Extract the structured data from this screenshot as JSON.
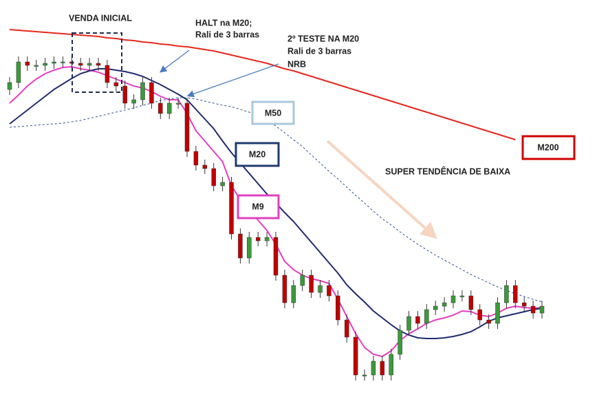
{
  "chart_data": {
    "type": "candlestick",
    "up_color": "#3b9a3b",
    "down_color": "#c00000",
    "wick_color": "#333333",
    "candles": {
      "open": [
        447,
        457,
        487,
        482,
        482,
        485,
        487,
        487,
        485,
        482,
        485,
        482,
        457,
        452,
        427,
        432,
        457,
        427,
        412,
        427,
        427,
        357,
        337,
        332,
        307,
        312,
        237,
        202,
        232,
        227,
        232,
        177,
        137,
        162,
        177,
        152,
        162,
        147,
        112,
        87,
        32,
        32,
        52,
        32,
        62,
        97,
        117,
        107,
        127,
        132,
        137,
        147,
        147,
        127,
        112,
        107,
        137,
        162,
        137,
        132,
        122
      ],
      "high": [
        465,
        495,
        495,
        490,
        493,
        495,
        495,
        495,
        493,
        493,
        493,
        490,
        465,
        460,
        440,
        465,
        465,
        435,
        435,
        435,
        435,
        365,
        345,
        340,
        320,
        320,
        245,
        240,
        240,
        240,
        240,
        185,
        170,
        185,
        185,
        170,
        170,
        155,
        120,
        95,
        40,
        60,
        60,
        70,
        105,
        125,
        125,
        135,
        140,
        145,
        155,
        155,
        155,
        135,
        120,
        145,
        170,
        170,
        145,
        140,
        140
      ],
      "low": [
        439,
        449,
        474,
        474,
        474,
        477,
        479,
        477,
        474,
        474,
        474,
        449,
        444,
        419,
        419,
        424,
        419,
        404,
        404,
        419,
        349,
        329,
        324,
        299,
        299,
        229,
        194,
        194,
        219,
        219,
        169,
        129,
        129,
        154,
        144,
        144,
        139,
        104,
        79,
        24,
        24,
        24,
        24,
        24,
        54,
        89,
        99,
        99,
        119,
        124,
        129,
        139,
        119,
        104,
        99,
        99,
        129,
        129,
        124,
        114,
        114
      ],
      "close": [
        457,
        487,
        482,
        482,
        485,
        487,
        487,
        485,
        482,
        485,
        482,
        457,
        452,
        427,
        432,
        457,
        427,
        412,
        427,
        427,
        357,
        337,
        332,
        307,
        312,
        237,
        202,
        232,
        227,
        232,
        177,
        137,
        162,
        177,
        152,
        162,
        147,
        112,
        87,
        32,
        32,
        52,
        32,
        62,
        97,
        117,
        107,
        127,
        132,
        137,
        147,
        147,
        127,
        112,
        107,
        137,
        162,
        137,
        132,
        122,
        132
      ]
    },
    "series": [
      {
        "name": "M9",
        "color": "#e63cbf",
        "dashed": false,
        "values": [
          427,
          439,
          452,
          462,
          470,
          475,
          479,
          480,
          477,
          475,
          472,
          467,
          462,
          457,
          452,
          449,
          444,
          437,
          432,
          432,
          412,
          387,
          372,
          357,
          342,
          307,
          287,
          272,
          257,
          242,
          222,
          197,
          185,
          177,
          172,
          169,
          165,
          142,
          117,
          92,
          72,
          62,
          59,
          67,
          82,
          92,
          99,
          107,
          112,
          115,
          119,
          125,
          124,
          119,
          117,
          122,
          129,
          132,
          130,
          129,
          130
        ]
      },
      {
        "name": "M20",
        "color": "#1f2a6e",
        "dashed": false,
        "values": [
          397,
          407,
          417,
          427,
          437,
          447,
          455,
          463,
          470,
          474,
          477,
          477,
          475,
          473,
          470,
          466,
          460,
          454,
          447,
          440,
          432,
          418,
          404,
          390,
          372,
          355,
          340,
          325,
          310,
          295,
          282,
          268,
          255,
          240,
          225,
          210,
          195,
          180,
          163,
          150,
          138,
          125,
          115,
          105,
          96,
          90,
          86,
          85,
          85,
          86,
          88,
          91,
          95,
          102,
          110,
          115,
          118,
          121,
          124,
          127,
          129
        ]
      },
      {
        "name": "M50",
        "color": "#2b4a9a",
        "dashed": true,
        "values": [
          392,
          393,
          394,
          395,
          396,
          397,
          398,
          400,
          402,
          405,
          408,
          411,
          414,
          417,
          420,
          424,
          427,
          431,
          433,
          435,
          435,
          433,
          430,
          427,
          424,
          422,
          418,
          414,
          410,
          402,
          394,
          384,
          374,
          364,
          352,
          340,
          328,
          317,
          305,
          293,
          282,
          270,
          259,
          250,
          240,
          231,
          222,
          214,
          206,
          199,
          192,
          185,
          178,
          172,
          166,
          160,
          155,
          150,
          146,
          142,
          138
        ]
      },
      {
        "name": "M200",
        "color": "#e8261c",
        "dashed": false,
        "values": [
          534,
          533,
          532,
          531,
          530,
          529,
          528,
          527,
          526,
          525,
          524,
          522,
          521,
          519,
          518,
          516,
          515,
          513,
          512,
          510,
          509,
          507,
          505,
          503,
          500,
          497,
          494,
          491,
          488,
          485,
          481,
          477,
          474,
          470,
          466,
          462,
          458,
          454,
          450,
          446,
          442,
          438,
          434,
          430,
          426,
          422,
          418,
          414,
          410,
          406,
          402,
          398,
          394,
          390,
          386,
          382,
          378,
          374,
          null,
          null,
          null
        ]
      }
    ],
    "annotations": {
      "initial_sale": "VENDA INICIAL",
      "halt": [
        "HALT na M20;",
        "Rali de 3 barras"
      ],
      "second_test": [
        "2º TESTE NA M20",
        "Rali de 3 barras",
        "NRB"
      ],
      "trend": "SUPER TENDÊNCIA DE BAIXA"
    }
  }
}
